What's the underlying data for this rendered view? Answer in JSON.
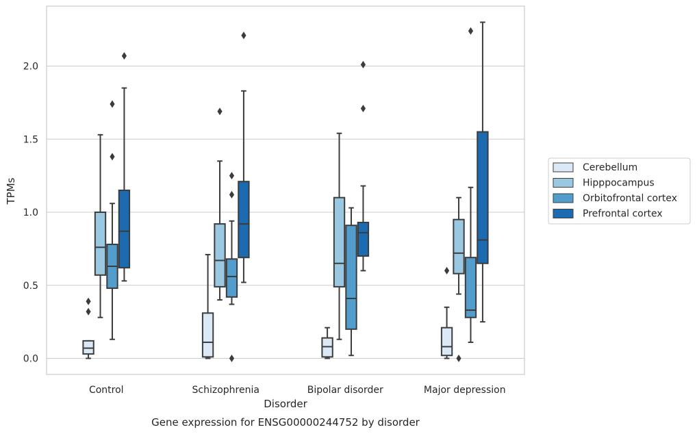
{
  "chart_data": {
    "type": "box",
    "xlabel": "Disorder",
    "ylabel": "TPMs",
    "caption": "Gene expression for ENSG00000244752 by disorder",
    "ylim": [
      -0.11,
      2.41
    ],
    "yticks": [
      "0.0",
      "0.5",
      "1.0",
      "1.5",
      "2.0"
    ],
    "grid": "horizontal",
    "legend_position": "right",
    "categories": [
      "Control",
      "Schizophrenia",
      "Bipolar disorder",
      "Major depression"
    ],
    "series": [
      {
        "name": "Cerebellum",
        "color": "#dbe9f6",
        "boxes": [
          {
            "whislo": 0.0,
            "q1": 0.03,
            "med": 0.07,
            "q3": 0.12,
            "whishi": 0.12,
            "fliers": [
              0.32,
              0.39
            ]
          },
          {
            "whislo": 0.0,
            "q1": 0.01,
            "med": 0.11,
            "q3": 0.31,
            "whishi": 0.71,
            "fliers": []
          },
          {
            "whislo": 0.0,
            "q1": 0.01,
            "med": 0.08,
            "q3": 0.14,
            "whishi": 0.21,
            "fliers": []
          },
          {
            "whislo": 0.0,
            "q1": 0.02,
            "med": 0.08,
            "q3": 0.21,
            "whishi": 0.35,
            "fliers": [
              0.6
            ]
          }
        ]
      },
      {
        "name": "Hipppocampus",
        "color": "#9ac8e0",
        "boxes": [
          {
            "whislo": 0.28,
            "q1": 0.57,
            "med": 0.76,
            "q3": 1.0,
            "whishi": 1.53,
            "fliers": []
          },
          {
            "whislo": 0.4,
            "q1": 0.49,
            "med": 0.67,
            "q3": 0.92,
            "whishi": 1.35,
            "fliers": [
              1.69
            ]
          },
          {
            "whislo": 0.13,
            "q1": 0.49,
            "med": 0.65,
            "q3": 1.1,
            "whishi": 1.54,
            "fliers": []
          },
          {
            "whislo": 0.44,
            "q1": 0.58,
            "med": 0.72,
            "q3": 0.95,
            "whishi": 1.1,
            "fliers": [
              0.0
            ]
          }
        ]
      },
      {
        "name": "Orbitofrontal cortex",
        "color": "#529dcc",
        "boxes": [
          {
            "whislo": 0.13,
            "q1": 0.48,
            "med": 0.63,
            "q3": 0.78,
            "whishi": 1.06,
            "fliers": [
              1.38,
              1.74
            ]
          },
          {
            "whislo": 0.37,
            "q1": 0.42,
            "med": 0.56,
            "q3": 0.68,
            "whishi": 0.94,
            "fliers": [
              0.0,
              1.12,
              1.25
            ]
          },
          {
            "whislo": 0.02,
            "q1": 0.2,
            "med": 0.41,
            "q3": 0.91,
            "whishi": 1.03,
            "fliers": []
          },
          {
            "whislo": 0.11,
            "q1": 0.28,
            "med": 0.33,
            "q3": 0.69,
            "whishi": 1.17,
            "fliers": [
              2.24
            ]
          }
        ]
      },
      {
        "name": "Prefrontal cortex",
        "color": "#1c6aaf",
        "boxes": [
          {
            "whislo": 0.53,
            "q1": 0.62,
            "med": 0.87,
            "q3": 1.15,
            "whishi": 1.85,
            "fliers": [
              2.07
            ]
          },
          {
            "whislo": 0.52,
            "q1": 0.69,
            "med": 0.92,
            "q3": 1.21,
            "whishi": 1.83,
            "fliers": [
              2.21
            ]
          },
          {
            "whislo": 0.6,
            "q1": 0.7,
            "med": 0.86,
            "q3": 0.93,
            "whishi": 1.18,
            "fliers": [
              1.71,
              2.01
            ]
          },
          {
            "whislo": 0.25,
            "q1": 0.65,
            "med": 0.81,
            "q3": 1.55,
            "whishi": 2.3,
            "fliers": []
          }
        ]
      }
    ]
  }
}
